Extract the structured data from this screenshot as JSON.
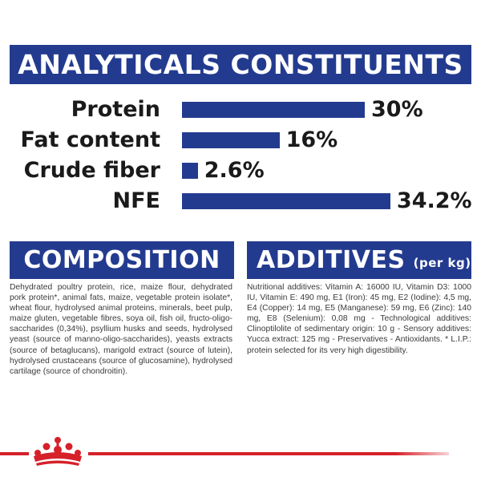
{
  "title": "ANALYTICALS CONSTITUENTS",
  "constituents": [
    {
      "label": "Protein",
      "value": "30%",
      "percent": 30
    },
    {
      "label": "Fat content",
      "value": "16%",
      "percent": 16
    },
    {
      "label": "Crude fiber",
      "value": "2.6%",
      "percent": 2.6
    },
    {
      "label": "NFE",
      "value": "34.2%",
      "percent": 34.2
    }
  ],
  "composition": {
    "heading": "COMPOSITION",
    "text": "Dehydrated poultry protein, rice, maize flour, dehydrated pork protein*, animal fats, maize, vegetable protein isolate*, wheat flour, hydrolysed animal proteins, minerals, beet pulp, maize gluten, vegetable fibres, soya oil, fish oil, fructo-oligo-saccharides (0,34%), psyllium husks and seeds, hydrolysed yeast (source of manno-oligo-saccharides), yeasts extracts (source of betaglucans), marigold extract (source of lutein), hydrolysed crustaceans (source of glucosamine), hydrolysed cartilage (source of chondroitin)."
  },
  "additives": {
    "heading": "ADDITIVES",
    "subheading": "(per kg)",
    "text": "Nutritional additives: Vitamin A: 16000 IU, Vitamin D3: 1000 IU, Vitamin E: 490 mg, E1 (Iron): 45 mg, E2 (Iodine): 4,5 mg, E4 (Copper): 14 mg, E5 (Manganese): 59 mg, E6 (Zinc): 140 mg, E8 (Selenium): 0,08 mg - Technological additives: Clinoptilolite of sedimentary origin: 10 g - Sensory additives: Yucca extract: 125 mg - Preservatives - Antioxidants. * L.I.P.: protein selected for its very high digestibility."
  },
  "colors": {
    "brand_blue": "#233b8f",
    "brand_red": "#d6202a"
  },
  "icons": {
    "logo": "royal-canin-crown-icon"
  }
}
